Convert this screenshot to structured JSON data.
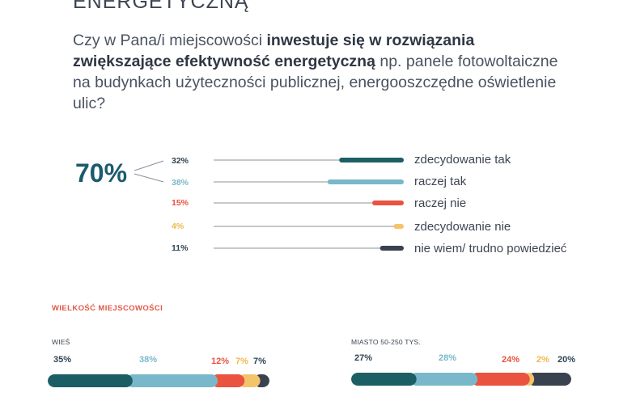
{
  "header": {
    "cut_title": "ENERGETYCZNĄ",
    "question": {
      "part1": "Czy w Pana/i miejscowości ",
      "bold": "inwestuje się w rozwiązania zwiększające efektywność energetyczną",
      "part2": " np. panele fotowoltaiczne na budynkach użyteczności publicznej, energooszczędne oświetlenie ulic?"
    }
  },
  "summary": {
    "total_yes": "70%"
  },
  "rows": [
    {
      "pct_label": "32%",
      "label": "zdecydowanie tak"
    },
    {
      "pct_label": "38%",
      "label": "raczej tak"
    },
    {
      "pct_label": "15%",
      "label": "raczej nie"
    },
    {
      "pct_label": "4%",
      "label": "zdecydowanie nie"
    },
    {
      "pct_label": "11%",
      "label": "nie wiem/ trudno powiedzieć"
    }
  ],
  "breakdown": {
    "section_title": "WIELKOŚĆ MIEJSCOWOŚCI",
    "groups": [
      {
        "title": "WIEŚ",
        "labels": [
          "35%",
          "38%",
          "12%",
          "7%",
          "7%"
        ]
      },
      {
        "title": "MIASTO 50-250 TYS.",
        "labels": [
          "27%",
          "28%",
          "24%",
          "2%",
          "20%"
        ]
      }
    ]
  },
  "colors": {
    "zdecydowanie_tak": "#1b5f65",
    "raczej_tak": "#79b8cb",
    "raczej_nie": "#e9533f",
    "zdecydowanie_nie": "#f4c46b",
    "nie_wiem": "#3a4250",
    "line": "#8b9099",
    "pct_label_dark": "#2c4454",
    "pct_label_light": "#79b8cb",
    "pct_label_red": "#e9533f",
    "pct_label_yellow": "#f0b84a"
  },
  "chart_data": [
    {
      "type": "bar",
      "categories": [
        "zdecydowanie tak",
        "raczej tak",
        "raczej nie",
        "zdecydowanie nie",
        "nie wiem/ trudno powiedzieć"
      ],
      "values": [
        32,
        38,
        15,
        4,
        11
      ],
      "xlim": [
        0,
        100
      ]
    },
    {
      "type": "bar",
      "stacked": true,
      "categories": [
        "WIEŚ",
        "MIASTO 50-250 TYS."
      ],
      "series": [
        {
          "name": "zdecydowanie tak",
          "values": [
            35,
            27
          ]
        },
        {
          "name": "raczej tak",
          "values": [
            38,
            28
          ]
        },
        {
          "name": "raczej nie",
          "values": [
            12,
            24
          ]
        },
        {
          "name": "zdecydowanie nie",
          "values": [
            7,
            2
          ]
        },
        {
          "name": "nie wiem/ trudno powiedzieć",
          "values": [
            7,
            20
          ]
        }
      ]
    }
  ]
}
